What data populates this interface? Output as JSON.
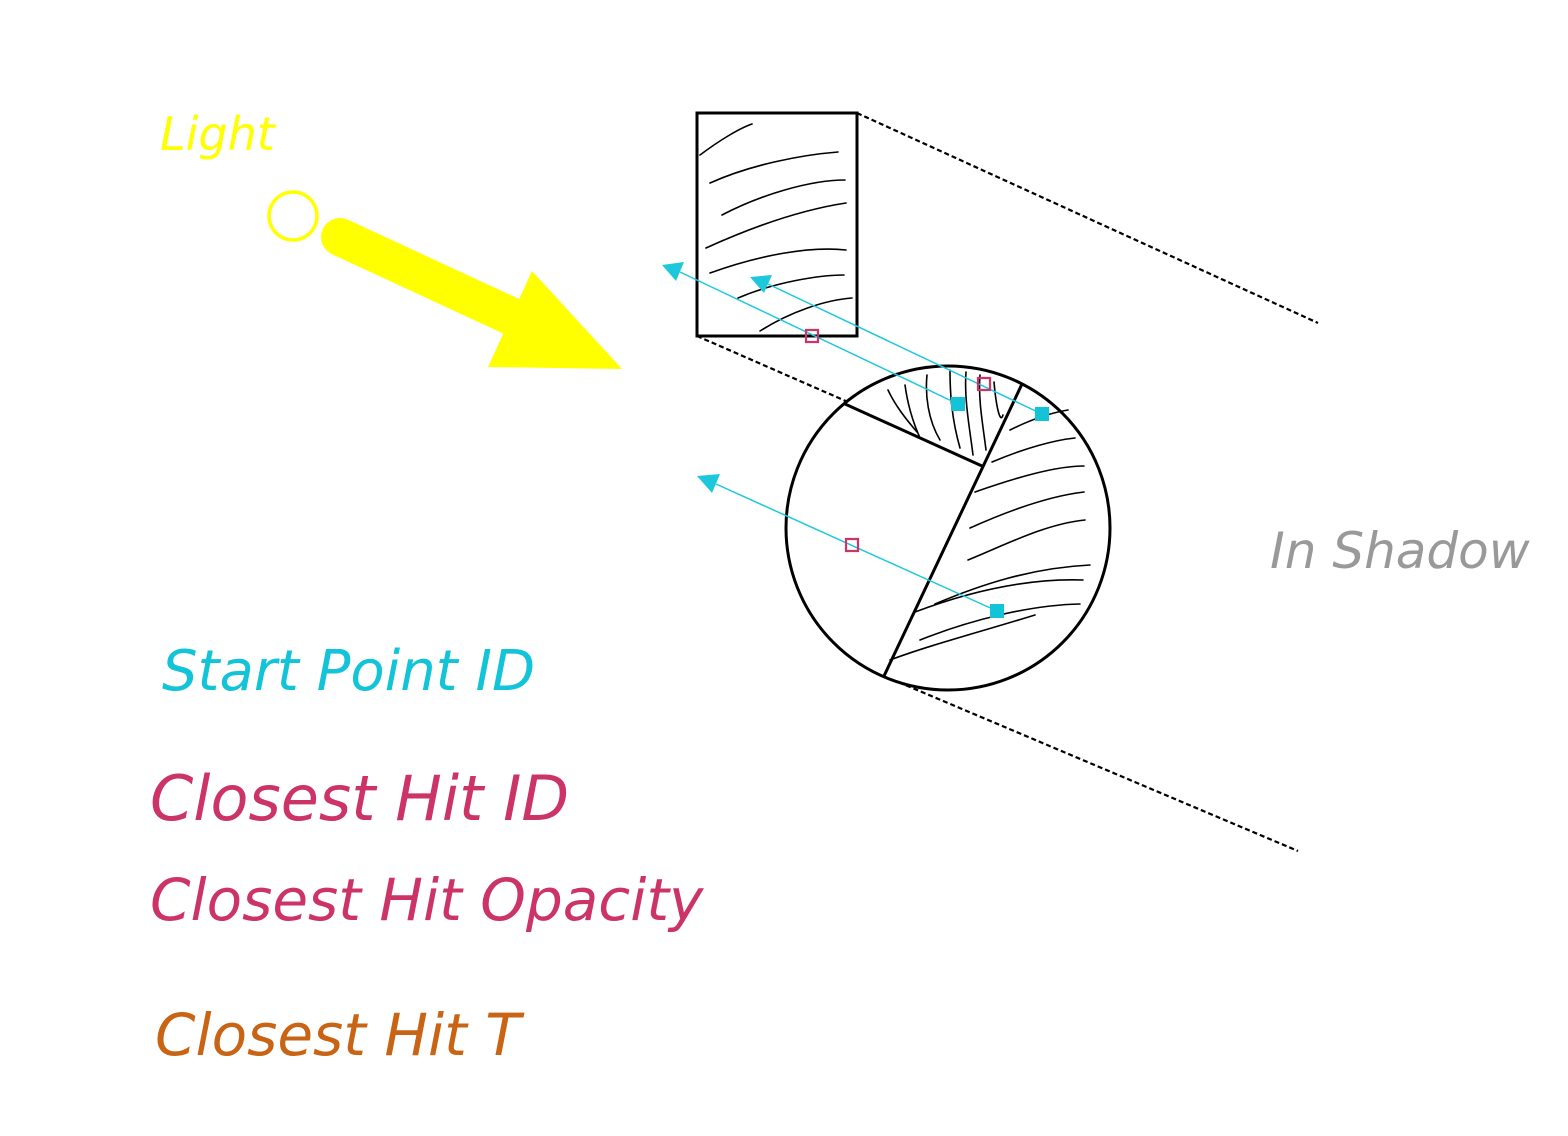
{
  "labels": {
    "light": "Light",
    "in_shadow": "In Shadow",
    "start_point_id": "Start Point ID",
    "closest_hit_id": "Closest Hit ID",
    "closest_hit_opacity": "Closest Hit Opacity",
    "closest_hit_t": "Closest Hit T"
  },
  "colors": {
    "light": "#ffff00",
    "ray": "#1ec8dc",
    "start_point": "#13c3d8",
    "closest_hit": "#cc3366",
    "closest_hit_t": "#c86414",
    "in_shadow": "#999999",
    "outline": "#000000"
  },
  "icons": {
    "light_source": "circle",
    "light_direction": "arrow-down-right",
    "start_point_marker": "filled-square",
    "closest_hit_marker": "hollow-square"
  }
}
